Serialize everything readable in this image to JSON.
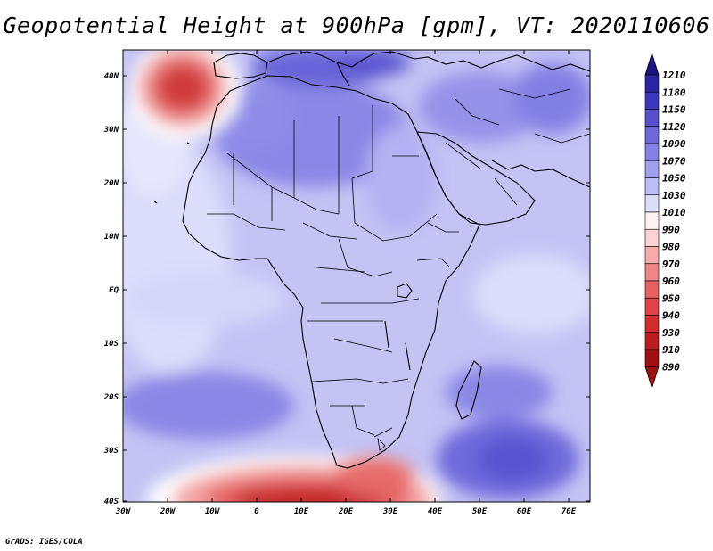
{
  "title": "Geopotential Height at 900hPa [gpm], VT: 2020110606",
  "credit": "GrADS: IGES/COLA",
  "lat_labels": [
    "40N",
    "30N",
    "20N",
    "10N",
    "EQ",
    "10S",
    "20S",
    "30S",
    "40S"
  ],
  "lon_labels": [
    "30W",
    "20W",
    "10W",
    "0",
    "10E",
    "20E",
    "30E",
    "40E",
    "50E",
    "60E",
    "70E"
  ],
  "colorbar": {
    "levels": [
      "1210",
      "1180",
      "1150",
      "1120",
      "1090",
      "1070",
      "1050",
      "1030",
      "1010",
      "990",
      "980",
      "970",
      "960",
      "950",
      "940",
      "930",
      "910",
      "890"
    ],
    "colors": [
      "#1a1486",
      "#2a24a6",
      "#3c37c0",
      "#5650cf",
      "#6d69dc",
      "#8582e6",
      "#a19fee",
      "#bdbdf5",
      "#dcdcfb",
      "#fff2f2",
      "#fbd3d3",
      "#f6aaaa",
      "#ef8585",
      "#e86060",
      "#df4343",
      "#d22c2c",
      "#bb1c1c",
      "#9f1111"
    ]
  }
}
